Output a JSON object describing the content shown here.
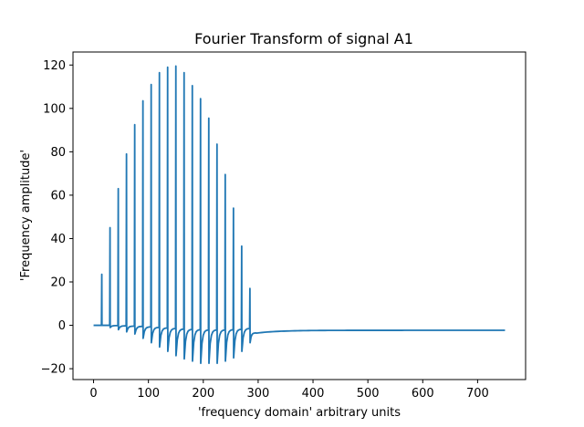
{
  "chart_data": {
    "type": "line",
    "title": "Fourier Transform of signal A1",
    "xlabel": "'frequency domain' arbitrary units",
    "ylabel": "'Frequency amplitude'",
    "xlim": [
      -37.5,
      787.5
    ],
    "ylim": [
      -25,
      126
    ],
    "xticks": [
      0,
      100,
      200,
      300,
      400,
      500,
      600,
      700
    ],
    "yticks": [
      -20,
      0,
      20,
      40,
      60,
      80,
      100,
      120
    ],
    "grid": false,
    "legend": false,
    "line_color": "#1f77b4",
    "series": [
      {
        "baseline_start": 0,
        "baseline_end": -2.3,
        "domain": [
          0,
          750
        ],
        "peaks": [
          {
            "x": 15,
            "y": 23.5,
            "min": 0
          },
          {
            "x": 30,
            "y": 45,
            "min": -1
          },
          {
            "x": 45,
            "y": 63,
            "min": -2
          },
          {
            "x": 60,
            "y": 79,
            "min": -3
          },
          {
            "x": 75,
            "y": 92.5,
            "min": -4
          },
          {
            "x": 90,
            "y": 103.5,
            "min": -6
          },
          {
            "x": 105,
            "y": 111,
            "min": -8
          },
          {
            "x": 120,
            "y": 116.5,
            "min": -10
          },
          {
            "x": 135,
            "y": 119,
            "min": -12
          },
          {
            "x": 150,
            "y": 119.5,
            "min": -14
          },
          {
            "x": 165,
            "y": 116.5,
            "min": -15.5
          },
          {
            "x": 180,
            "y": 110.5,
            "min": -16.5
          },
          {
            "x": 195,
            "y": 104.5,
            "min": -17.5
          },
          {
            "x": 210,
            "y": 95.5,
            "min": -17.5
          },
          {
            "x": 225,
            "y": 83.5,
            "min": -17.5
          },
          {
            "x": 240,
            "y": 69.5,
            "min": -16.5
          },
          {
            "x": 255,
            "y": 54,
            "min": -15
          },
          {
            "x": 270,
            "y": 36.5,
            "min": -12
          },
          {
            "x": 285,
            "y": 17,
            "min": -8
          }
        ]
      }
    ]
  }
}
